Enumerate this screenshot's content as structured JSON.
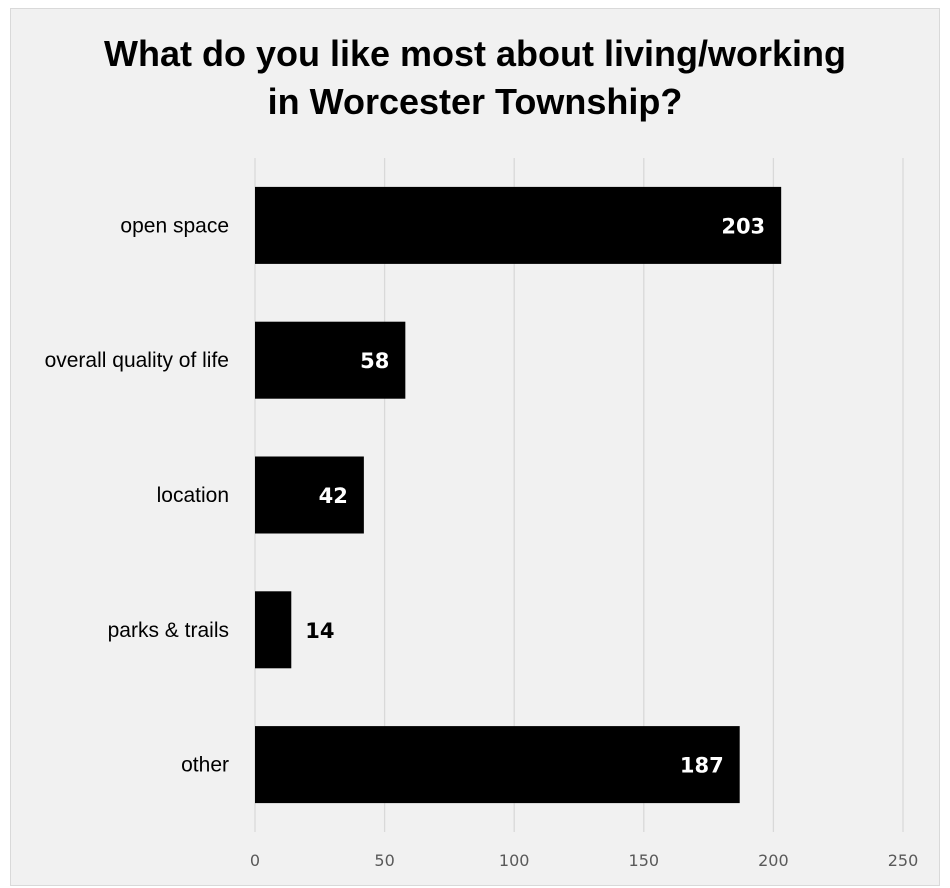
{
  "chart_data": {
    "type": "bar",
    "orientation": "horizontal",
    "title_lines": [
      "What do you like most about living/working",
      "in Worcester Township?"
    ],
    "categories": [
      "open space",
      "overall quality of life",
      "location",
      "parks & trails",
      "other"
    ],
    "values": [
      203,
      58,
      42,
      14,
      187
    ],
    "data_labels": [
      "203",
      "58",
      "42",
      "14",
      "187"
    ],
    "xlim": [
      0,
      250
    ],
    "x_ticks": [
      "0",
      "50",
      "100",
      "150",
      "200",
      "250"
    ],
    "grid": true,
    "legend": "none"
  },
  "colors": {
    "bar": "#000000",
    "inside_label": "#ffffff",
    "outside_label": "#000000",
    "gridline": "#d9d9d9",
    "background": "#f1f1f1",
    "border": "#d9d9d9"
  }
}
